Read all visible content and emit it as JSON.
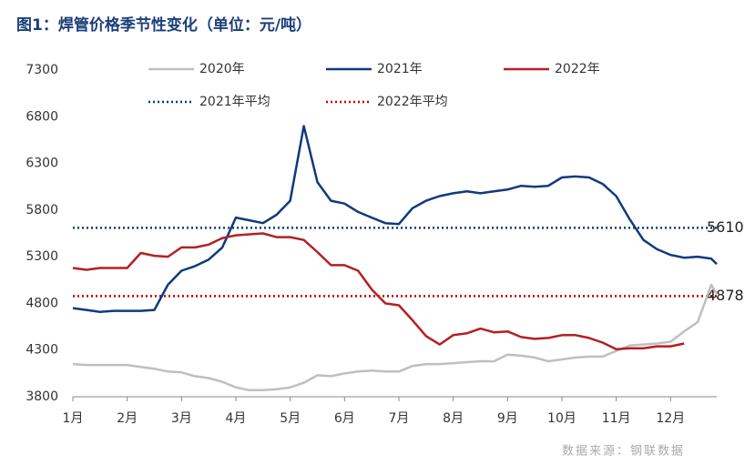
{
  "chart_data": {
    "type": "line",
    "title": "图1：焊管价格季节性变化（单位：元/吨）",
    "source": "数据来源：钢联数据",
    "x": [
      1,
      1.25,
      1.5,
      1.75,
      2,
      2.25,
      2.5,
      2.75,
      3,
      3.25,
      3.5,
      3.75,
      4,
      4.25,
      4.5,
      4.75,
      5,
      5.25,
      5.5,
      5.75,
      6,
      6.25,
      6.5,
      6.75,
      7,
      7.25,
      7.5,
      7.75,
      8,
      8.25,
      8.5,
      8.75,
      9,
      9.25,
      9.5,
      9.75,
      10,
      10.25,
      10.5,
      10.75,
      11,
      11.25,
      11.5,
      11.75,
      12,
      12.25,
      12.5,
      12.75,
      12.85
    ],
    "xlim": [
      1,
      12.85
    ],
    "xticks": [
      {
        "value": 1,
        "label": "1月"
      },
      {
        "value": 2,
        "label": "2月"
      },
      {
        "value": 3,
        "label": "3月"
      },
      {
        "value": 4,
        "label": "4月"
      },
      {
        "value": 5,
        "label": "5月"
      },
      {
        "value": 6,
        "label": "6月"
      },
      {
        "value": 7,
        "label": "7月"
      },
      {
        "value": 8,
        "label": "8月"
      },
      {
        "value": 9,
        "label": "9月"
      },
      {
        "value": 10,
        "label": "10月"
      },
      {
        "value": 11,
        "label": "11月"
      },
      {
        "value": 12,
        "label": "12月"
      }
    ],
    "ylim": [
      3800,
      7300
    ],
    "yticks": [
      3800,
      4300,
      4800,
      5300,
      5800,
      6300,
      6800,
      7300
    ],
    "grid": false,
    "series": [
      {
        "name": "2020年",
        "color": "#bfbfbf",
        "values": [
          4150,
          4140,
          4140,
          4140,
          4140,
          4120,
          4100,
          4070,
          4060,
          4020,
          4000,
          3960,
          3900,
          3870,
          3870,
          3880,
          3900,
          3950,
          4030,
          4020,
          4050,
          4070,
          4080,
          4070,
          4070,
          4130,
          4150,
          4150,
          4160,
          4170,
          4180,
          4180,
          4250,
          4240,
          4220,
          4180,
          4200,
          4220,
          4230,
          4230,
          4290,
          4350,
          4360,
          4370,
          4390,
          4500,
          4600,
          5000,
          4900
        ]
      },
      {
        "name": "2021年",
        "color": "#0f3a7d",
        "values": [
          4750,
          4730,
          4710,
          4720,
          4720,
          4720,
          4730,
          5000,
          5150,
          5200,
          5270,
          5400,
          5720,
          5690,
          5660,
          5750,
          5900,
          6700,
          6100,
          5900,
          5870,
          5780,
          5720,
          5660,
          5650,
          5820,
          5900,
          5950,
          5980,
          6000,
          5980,
          6000,
          6020,
          6060,
          6050,
          6060,
          6150,
          6160,
          6150,
          6080,
          5950,
          5700,
          5480,
          5380,
          5320,
          5290,
          5300,
          5280,
          5220
        ]
      },
      {
        "name": "2022年",
        "color": "#b41f24",
        "values": [
          5180,
          5160,
          5180,
          5180,
          5180,
          5340,
          5310,
          5300,
          5400,
          5400,
          5430,
          5500,
          5530,
          5540,
          5550,
          5510,
          5510,
          5480,
          5350,
          5210,
          5210,
          5150,
          4950,
          4800,
          4780,
          4620,
          4450,
          4360,
          4460,
          4480,
          4530,
          4490,
          4500,
          4440,
          4420,
          4430,
          4460,
          4460,
          4430,
          4380,
          4310,
          4320,
          4320,
          4340,
          4340,
          4370,
          null,
          null,
          null
        ]
      }
    ],
    "reference_lines": [
      {
        "name": "2021年平均",
        "value": 5610,
        "color": "#0f3a7d"
      },
      {
        "name": "2022年平均",
        "value": 4878,
        "color": "#c00000"
      }
    ]
  }
}
